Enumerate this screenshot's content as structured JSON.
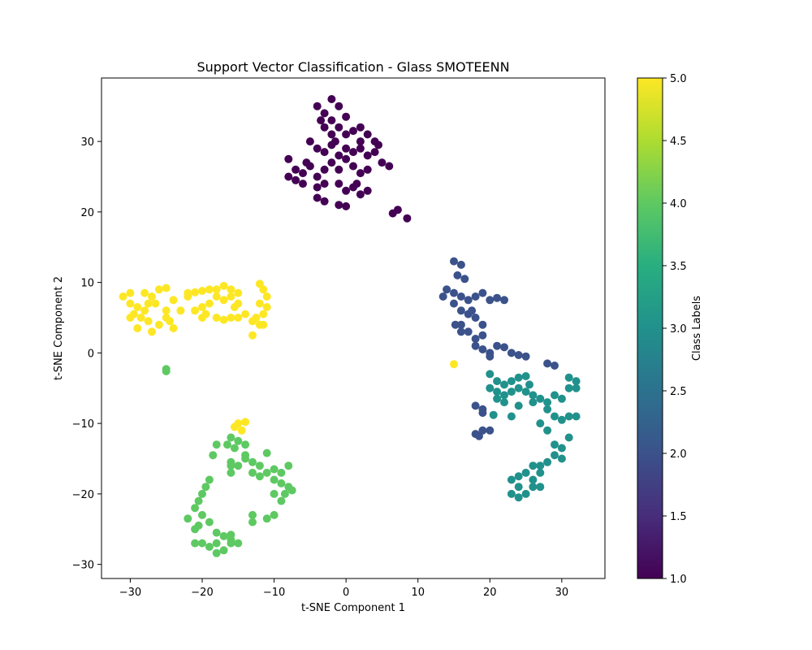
{
  "chart_data": {
    "type": "scatter",
    "title": "Support Vector Classification - Glass SMOTEENN",
    "xlabel": "t-SNE Component 1",
    "ylabel": "t-SNE Component 2",
    "xlim": [
      -34,
      36
    ],
    "ylim": [
      -32,
      39
    ],
    "xticks": [
      -30,
      -20,
      -10,
      0,
      10,
      20,
      30
    ],
    "yticks": [
      -30,
      -20,
      -10,
      0,
      10,
      20,
      30
    ],
    "grid": false,
    "colorbar": {
      "label": "Class Labels",
      "range": [
        1.0,
        5.0
      ],
      "ticks": [
        "1.0",
        "1.5",
        "2.0",
        "2.5",
        "3.0",
        "3.5",
        "4.0",
        "4.5",
        "5.0"
      ],
      "colormap": "viridis"
    },
    "series": [
      {
        "class": 1,
        "color": "#440154",
        "points": [
          [
            -4,
            35
          ],
          [
            -3,
            34
          ],
          [
            -2,
            36
          ],
          [
            -1,
            35
          ],
          [
            0,
            33.5
          ],
          [
            -3,
            32
          ],
          [
            -2,
            31
          ],
          [
            -1,
            32
          ],
          [
            0,
            31
          ],
          [
            1,
            31.5
          ],
          [
            2,
            30
          ],
          [
            3,
            31
          ],
          [
            4,
            30
          ],
          [
            -5,
            30
          ],
          [
            -4,
            29
          ],
          [
            -3,
            28.5
          ],
          [
            -2,
            29.5
          ],
          [
            -1,
            28
          ],
          [
            0,
            29
          ],
          [
            1,
            28.5
          ],
          [
            2,
            29
          ],
          [
            3,
            28
          ],
          [
            4,
            28.5
          ],
          [
            5,
            27
          ],
          [
            6,
            26.5
          ],
          [
            -8,
            27.5
          ],
          [
            -7,
            26
          ],
          [
            -6,
            25.5
          ],
          [
            -5,
            26.5
          ],
          [
            -4,
            25
          ],
          [
            -3,
            26
          ],
          [
            -2,
            27
          ],
          [
            -1,
            26
          ],
          [
            0,
            27.5
          ],
          [
            1,
            26.5
          ],
          [
            2,
            25.5
          ],
          [
            3,
            26
          ],
          [
            -8,
            25
          ],
          [
            -7,
            24.5
          ],
          [
            -6,
            24
          ],
          [
            -4,
            23.5
          ],
          [
            -3,
            24
          ],
          [
            -1,
            24
          ],
          [
            0,
            23
          ],
          [
            1,
            23.5
          ],
          [
            2,
            22.5
          ],
          [
            3,
            23
          ],
          [
            -4,
            22
          ],
          [
            -3,
            21.5
          ],
          [
            -1,
            21
          ],
          [
            0,
            20.8
          ],
          [
            -2,
            33
          ],
          [
            -3.5,
            33
          ],
          [
            2,
            32
          ],
          [
            4.5,
            29.5
          ],
          [
            -5.5,
            27
          ],
          [
            1.5,
            24
          ],
          [
            -1.5,
            30
          ],
          [
            6.5,
            19.8
          ],
          [
            7.2,
            20.3
          ],
          [
            8.5,
            19.1
          ]
        ]
      },
      {
        "class": 2,
        "color": "#3b528b",
        "points": [
          [
            15,
            13
          ],
          [
            16,
            12.5
          ],
          [
            15.5,
            11
          ],
          [
            16.5,
            10.5
          ],
          [
            14,
            9
          ],
          [
            13.5,
            8
          ],
          [
            15,
            8.5
          ],
          [
            16,
            8
          ],
          [
            17,
            7.5
          ],
          [
            18,
            8
          ],
          [
            19,
            8.5
          ],
          [
            15,
            7
          ],
          [
            16,
            6
          ],
          [
            17,
            5.5
          ],
          [
            18,
            5
          ],
          [
            16,
            4
          ],
          [
            17,
            3
          ],
          [
            18,
            2
          ],
          [
            19,
            2.5
          ],
          [
            19,
            4
          ],
          [
            20,
            7.5
          ],
          [
            21,
            7.8
          ],
          [
            22,
            7.5
          ],
          [
            16,
            3
          ],
          [
            18,
            1
          ],
          [
            19,
            0.5
          ],
          [
            20,
            0
          ],
          [
            21,
            1
          ],
          [
            22,
            0.8
          ],
          [
            23,
            0
          ],
          [
            24,
            -0.3
          ],
          [
            25,
            -0.5
          ],
          [
            28,
            -1.5
          ],
          [
            29,
            -1.8
          ],
          [
            20,
            -0.5
          ],
          [
            18,
            -7.5
          ],
          [
            19,
            -8
          ],
          [
            19,
            -8.5
          ],
          [
            18,
            -11.5
          ],
          [
            19,
            -11
          ],
          [
            20,
            -11
          ],
          [
            18.5,
            -11.8
          ],
          [
            15.2,
            4
          ],
          [
            17.5,
            6
          ]
        ]
      },
      {
        "class": 3,
        "color": "#21918c",
        "points": [
          [
            20,
            -3
          ],
          [
            21,
            -4
          ],
          [
            22,
            -4.5
          ],
          [
            23,
            -4
          ],
          [
            24,
            -3.5
          ],
          [
            25,
            -3.3
          ],
          [
            20,
            -5
          ],
          [
            21,
            -5.5
          ],
          [
            22,
            -6
          ],
          [
            23,
            -5.5
          ],
          [
            24,
            -5
          ],
          [
            25,
            -5.5
          ],
          [
            26,
            -6
          ],
          [
            27,
            -6.5
          ],
          [
            28,
            -7
          ],
          [
            29,
            -6
          ],
          [
            30,
            -6.5
          ],
          [
            31,
            -5
          ],
          [
            32,
            -4
          ],
          [
            32,
            -5
          ],
          [
            31,
            -3.5
          ],
          [
            22,
            -7
          ],
          [
            24,
            -7.5
          ],
          [
            26,
            -7
          ],
          [
            28,
            -8
          ],
          [
            29,
            -9
          ],
          [
            30,
            -9.5
          ],
          [
            31,
            -9
          ],
          [
            32,
            -9
          ],
          [
            23,
            -9
          ],
          [
            27,
            -10
          ],
          [
            28,
            -11
          ],
          [
            29,
            -13
          ],
          [
            29,
            -14.5
          ],
          [
            30,
            -15
          ],
          [
            28,
            -15.5
          ],
          [
            27,
            -16
          ],
          [
            27,
            -17
          ],
          [
            26,
            -18
          ],
          [
            25,
            -17
          ],
          [
            24,
            -17.5
          ],
          [
            23,
            -18
          ],
          [
            24,
            -19
          ],
          [
            23,
            -20
          ],
          [
            24,
            -20.5
          ],
          [
            25,
            -20
          ],
          [
            26,
            -19
          ],
          [
            27,
            -19
          ],
          [
            26,
            -16
          ],
          [
            30,
            -13.5
          ],
          [
            31,
            -12
          ],
          [
            21,
            -6.5
          ],
          [
            25.5,
            -4.5
          ],
          [
            20.5,
            -8.8
          ]
        ]
      },
      {
        "class": 4,
        "color": "#5ec962",
        "points": [
          [
            -16,
            -12
          ],
          [
            -15,
            -12.5
          ],
          [
            -14,
            -13
          ],
          [
            -15.5,
            -13.5
          ],
          [
            -16.5,
            -13
          ],
          [
            -18,
            -13
          ],
          [
            -18.5,
            -14.5
          ],
          [
            -16,
            -15.5
          ],
          [
            -15,
            -16
          ],
          [
            -14,
            -15
          ],
          [
            -13,
            -15.5
          ],
          [
            -12,
            -16
          ],
          [
            -11,
            -17
          ],
          [
            -10,
            -16.5
          ],
          [
            -9,
            -17
          ],
          [
            -8,
            -16
          ],
          [
            -13,
            -17
          ],
          [
            -12,
            -17.5
          ],
          [
            -10,
            -18
          ],
          [
            -9,
            -18.5
          ],
          [
            -8,
            -19
          ],
          [
            -7.5,
            -19.5
          ],
          [
            -8.5,
            -20
          ],
          [
            -9,
            -21
          ],
          [
            -10,
            -20
          ],
          [
            -10,
            -23
          ],
          [
            -11,
            -23.5
          ],
          [
            -13,
            -23
          ],
          [
            -13,
            -24
          ],
          [
            -16,
            -16
          ],
          [
            -16,
            -17
          ],
          [
            -19,
            -18
          ],
          [
            -19.5,
            -19
          ],
          [
            -20,
            -20
          ],
          [
            -20.5,
            -21
          ],
          [
            -21,
            -22
          ],
          [
            -20,
            -23
          ],
          [
            -19,
            -24
          ],
          [
            -20.5,
            -24.5
          ],
          [
            -21,
            -25
          ],
          [
            -18,
            -25.5
          ],
          [
            -17,
            -26
          ],
          [
            -16,
            -26.5
          ],
          [
            -18,
            -27
          ],
          [
            -19,
            -27.5
          ],
          [
            -20,
            -27
          ],
          [
            -21,
            -27
          ],
          [
            -17,
            -28
          ],
          [
            -18,
            -28.4
          ],
          [
            -16,
            -27
          ],
          [
            -15,
            -27
          ],
          [
            -16,
            -25.8
          ],
          [
            -22,
            -23.5
          ],
          [
            -14,
            -14.5
          ],
          [
            -11,
            -14.2
          ],
          [
            -25,
            -2.3
          ],
          [
            -25,
            -2.6
          ]
        ]
      },
      {
        "class": 5,
        "color": "#fde725",
        "points": [
          [
            -31,
            8
          ],
          [
            -30,
            7
          ],
          [
            -29,
            6.5
          ],
          [
            -28,
            6
          ],
          [
            -29.5,
            5.5
          ],
          [
            -30,
            5
          ],
          [
            -28.5,
            5
          ],
          [
            -27.5,
            4.5
          ],
          [
            -29,
            3.5
          ],
          [
            -27,
            3
          ],
          [
            -28,
            8.5
          ],
          [
            -27,
            8
          ],
          [
            -26,
            9
          ],
          [
            -25,
            9.2
          ],
          [
            -26.5,
            7
          ],
          [
            -27.5,
            7
          ],
          [
            -25,
            6
          ],
          [
            -24,
            7.5
          ],
          [
            -25,
            5
          ],
          [
            -24.5,
            4.5
          ],
          [
            -24,
            3.5
          ],
          [
            -23,
            6
          ],
          [
            -22,
            8.5
          ],
          [
            -21,
            8.6
          ],
          [
            -20,
            8.8
          ],
          [
            -19,
            9
          ],
          [
            -18,
            9
          ],
          [
            -17,
            9.5
          ],
          [
            -16,
            9
          ],
          [
            -15,
            8.5
          ],
          [
            -16,
            8
          ],
          [
            -17,
            7.5
          ],
          [
            -18,
            8
          ],
          [
            -19,
            7
          ],
          [
            -20,
            6.5
          ],
          [
            -21,
            6
          ],
          [
            -19.5,
            5.5
          ],
          [
            -18,
            5
          ],
          [
            -17,
            4.7
          ],
          [
            -16,
            5
          ],
          [
            -15,
            5
          ],
          [
            -14,
            5.5
          ],
          [
            -15.5,
            6.5
          ],
          [
            -15,
            7
          ],
          [
            -12,
            9.8
          ],
          [
            -11.5,
            9
          ],
          [
            -11,
            8
          ],
          [
            -12,
            7
          ],
          [
            -11,
            6.5
          ],
          [
            -11.5,
            5.5
          ],
          [
            -12.5,
            5
          ],
          [
            -13,
            4.5
          ],
          [
            -12,
            4
          ],
          [
            -13,
            2.5
          ],
          [
            -11.5,
            4
          ],
          [
            -30,
            8.5
          ],
          [
            -22,
            8
          ],
          [
            -20,
            5
          ],
          [
            -26,
            4
          ],
          [
            15,
            -1.6
          ],
          [
            -15,
            -10
          ],
          [
            -14,
            -9.8
          ],
          [
            -15.5,
            -10.5
          ],
          [
            -14.5,
            -11
          ]
        ]
      }
    ]
  }
}
